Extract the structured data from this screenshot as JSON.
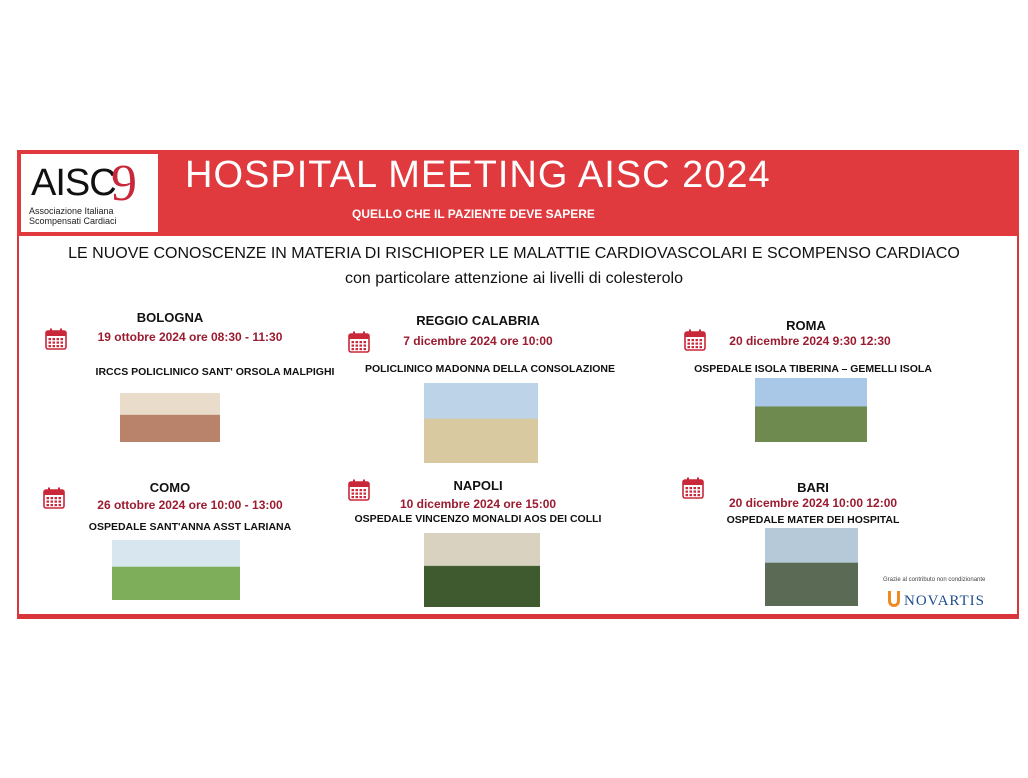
{
  "logo": {
    "text": "AISC",
    "mark": "9",
    "subtitle_line1": "Associazione Italiana",
    "subtitle_line2": "Scompensati Cardiaci"
  },
  "header": {
    "title": "HOSPITAL MEETING AISC 2024",
    "subtitle": "QUELLO CHE IL PAZIENTE DEVE SAPERE"
  },
  "topic": {
    "line1": "LE NUOVE CONOSCENZE IN MATERIA DI RISCHIOPER LE MALATTIE CARDIOVASCOLARI E SCOMPENSO CARDIACO",
    "line2": "con particolare attenzione ai livelli di colesterolo"
  },
  "events": [
    {
      "city": "BOLOGNA",
      "date": "19 ottobre 2024 ore 08:30 - 11:30",
      "hospital": "IRCCS POLICLINICO SANT' ORSOLA  MALPIGHI",
      "icon": "calendar-icon"
    },
    {
      "city": "REGGIO CALABRIA",
      "date": "7 dicembre 2024 ore 10:00",
      "hospital": "POLICLINICO MADONNA DELLA CONSOLAZIONE",
      "icon": "calendar-icon"
    },
    {
      "city": "ROMA",
      "date": "20 dicembre 2024 9:30 12:30",
      "hospital": "OSPEDALE ISOLA TIBERINA – GEMELLI ISOLA",
      "icon": "calendar-icon"
    },
    {
      "city": "COMO",
      "date": "26 ottobre 2024 ore 10:00 - 13:00",
      "hospital": "OSPEDALE SANT'ANNA ASST LARIANA",
      "icon": "calendar-icon"
    },
    {
      "city": "NAPOLI",
      "date": "10 dicembre 2024 ore 15:00",
      "hospital": "OSPEDALE VINCENZO MONALDI AOS DEI COLLI",
      "icon": "calendar-icon"
    },
    {
      "city": "BARI",
      "date": "20 dicembre 2024 10:00 12:00",
      "hospital": "OSPEDALE MATER DEI HOSPITAL",
      "icon": "calendar-icon"
    }
  ],
  "sponsor": {
    "thanks": "Grazie al contributo non condizionante",
    "name": "NOVARTIS"
  },
  "colors": {
    "brand_red": "#e03a3e",
    "date_red": "#9b1b30"
  }
}
